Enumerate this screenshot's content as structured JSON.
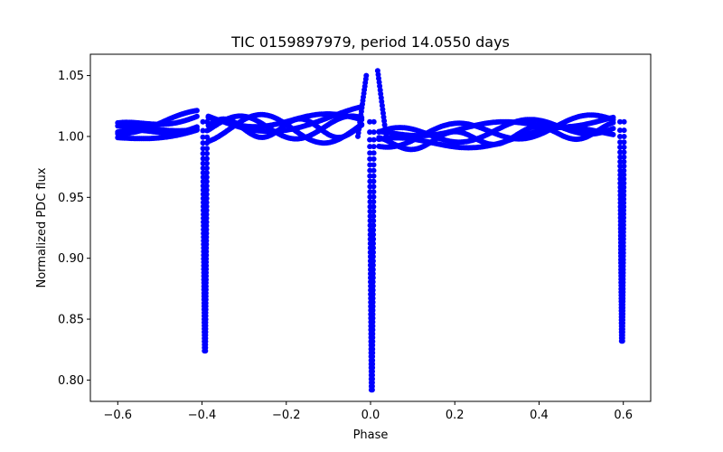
{
  "chart_data": {
    "type": "scatter",
    "title": "TIC 0159897979, period 14.0550 days",
    "xlabel": "Phase",
    "ylabel": "Normalized PDC flux",
    "xlim": [
      -0.665,
      0.665
    ],
    "ylim": [
      0.7825,
      1.0675
    ],
    "grid": false,
    "point_color": "#0000ff",
    "x_ticks": [
      -0.6,
      -0.4,
      -0.2,
      0.0,
      0.2,
      0.4,
      0.6
    ],
    "x_tick_labels": [
      "−0.6",
      "−0.4",
      "−0.2",
      "0.0",
      "0.2",
      "0.4",
      "0.6"
    ],
    "y_ticks": [
      0.8,
      0.85,
      0.9,
      0.95,
      1.0,
      1.05
    ],
    "y_tick_labels": [
      "0.80",
      "0.85",
      "0.90",
      "0.95",
      "1.00",
      "1.05"
    ],
    "series": [
      {
        "description_key": "out-of-eclipse bands",
        "bands": [
          {
            "x_range": [
              -0.6,
              -0.41
            ],
            "center": 1.008,
            "amp": 0.008,
            "trend": 0.01
          },
          {
            "x_range": [
              -0.385,
              -0.02
            ],
            "center": 1.01,
            "amp": 0.01,
            "trend": 0.0
          },
          {
            "x_range": [
              0.02,
              0.58
            ],
            "center": 1.003,
            "amp": 0.008,
            "trend": 0.012
          }
        ]
      }
    ],
    "dips": [
      {
        "phase": -0.393,
        "min": 0.824
      },
      {
        "phase": 0.003,
        "min": 0.792
      },
      {
        "phase": 0.597,
        "min": 0.832
      }
    ],
    "peaks": [
      {
        "phase": -0.01,
        "max": 1.05
      },
      {
        "phase": 0.017,
        "max": 1.054
      }
    ]
  }
}
